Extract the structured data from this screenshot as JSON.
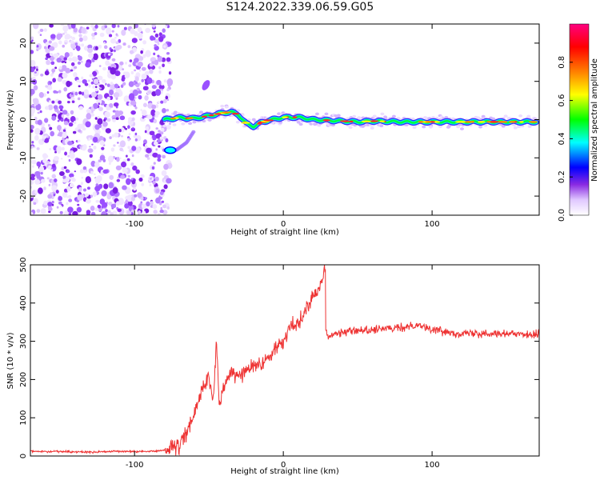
{
  "title": "S124.2022.339.06.59.G05",
  "chart_data": [
    {
      "type": "heatmap",
      "xlabel": "Height of straight line (km)",
      "ylabel": "Frequency (Hz)",
      "xlim": [
        -170,
        172
      ],
      "ylim": [
        -25,
        25
      ],
      "xticks": [
        -100,
        0,
        100
      ],
      "xtick_labels": [
        "-100",
        "0",
        "100"
      ],
      "yticks": [
        -20,
        -10,
        0,
        10,
        20
      ],
      "ytick_labels": [
        "-20",
        "-10",
        "0",
        "10",
        "20"
      ],
      "colorbar": {
        "label": "Normalized spectral amplitude",
        "range": [
          0,
          1
        ],
        "ticks": [
          0.0,
          0.2,
          0.4,
          0.6,
          0.8
        ],
        "tick_labels": [
          "0.0",
          "0.2",
          "0.4",
          "0.6",
          "0.8"
        ],
        "colors": [
          "#ffffff",
          "#7f00ff",
          "#0000ff",
          "#00ffff",
          "#00ff00",
          "#ffff00",
          "#ff8000",
          "#ff0000",
          "#ff0080"
        ]
      },
      "noise_region_x": [
        -170,
        -80
      ],
      "signal_trace": {
        "x": [
          -80,
          -70,
          -60,
          -50,
          -40,
          -35,
          -30,
          -25,
          -20,
          -15,
          -10,
          0,
          10,
          20,
          30,
          40,
          50,
          60,
          80,
          100,
          120,
          140,
          160,
          170
        ],
        "y": [
          0,
          0.5,
          0.3,
          1.0,
          1.8,
          2.0,
          1.2,
          -1.0,
          -1.8,
          -0.8,
          -0.2,
          0.6,
          0.6,
          0.0,
          -0.2,
          -0.4,
          -0.6,
          -0.4,
          -0.6,
          -0.6,
          -0.6,
          -0.6,
          -0.6,
          -0.6
        ]
      },
      "faint_branch": {
        "x": [
          -80,
          -72,
          -65,
          -60
        ],
        "y": [
          -8,
          -8,
          -6,
          -3
        ]
      },
      "blob": {
        "x": -52,
        "y": 9
      }
    },
    {
      "type": "line",
      "xlabel": "Height of straight line (km)",
      "ylabel": "SNR (10 * v/v)",
      "xlim": [
        -170,
        172
      ],
      "ylim": [
        0,
        500
      ],
      "xticks": [
        -100,
        0,
        100
      ],
      "xtick_labels": [
        "-100",
        "0",
        "100"
      ],
      "yticks": [
        0,
        100,
        200,
        300,
        400,
        500
      ],
      "ytick_labels": [
        "0",
        "100",
        "200",
        "300",
        "400",
        "500"
      ],
      "color": "#ee3333",
      "series": [
        {
          "x": [
            -170,
            -150,
            -130,
            -110,
            -90,
            -80,
            -70,
            -65,
            -60,
            -55,
            -50,
            -47,
            -45,
            -43,
            -40,
            -35,
            -30,
            -25,
            -20,
            -15,
            -10,
            -5,
            0,
            5,
            10,
            15,
            20,
            25,
            27,
            28,
            30,
            40,
            60,
            80,
            90,
            100,
            120,
            140,
            160,
            172
          ],
          "y": [
            12,
            12,
            10,
            12,
            12,
            15,
            25,
            60,
            110,
            170,
            210,
            140,
            300,
            130,
            180,
            220,
            210,
            220,
            240,
            235,
            260,
            280,
            300,
            340,
            350,
            380,
            420,
            450,
            470,
            320,
            315,
            325,
            330,
            335,
            345,
            330,
            320,
            322,
            318,
            320
          ]
        }
      ]
    }
  ]
}
